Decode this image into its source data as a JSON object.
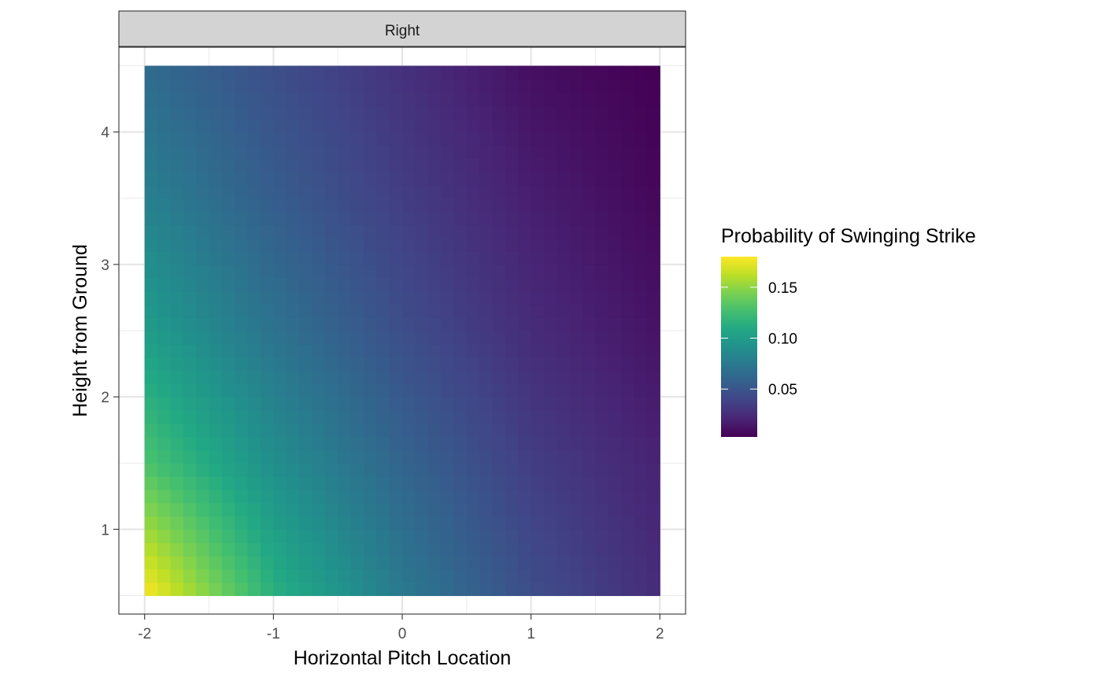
{
  "chart_data": {
    "type": "heatmap",
    "facet_label": "Right",
    "xlabel": "Horizontal Pitch Location",
    "ylabel": "Height from Ground",
    "xlim": [
      -2.2,
      2.2
    ],
    "ylim": [
      0.36,
      4.64
    ],
    "x_ticks": [
      -2,
      -1,
      0,
      1,
      2
    ],
    "x_tick_labels": [
      "-2",
      "-1",
      "0",
      "1",
      "2"
    ],
    "y_ticks": [
      1,
      2,
      3,
      4
    ],
    "y_tick_labels": [
      "1",
      "2",
      "3",
      "4"
    ],
    "grid": true,
    "x_range": [
      -2,
      2
    ],
    "y_range": [
      0.5,
      4.5
    ],
    "grid_x": [
      -2,
      -1,
      0,
      1,
      2
    ],
    "grid_y": [
      0.5,
      1.5,
      2.5,
      3.5,
      4.5
    ],
    "z": [
      [
        0.18,
        0.115,
        0.075,
        0.045,
        0.025
      ],
      [
        0.13,
        0.09,
        0.06,
        0.035,
        0.02
      ],
      [
        0.1,
        0.07,
        0.045,
        0.025,
        0.012
      ],
      [
        0.08,
        0.055,
        0.035,
        0.018,
        0.006
      ],
      [
        0.065,
        0.045,
        0.028,
        0.01,
        0.003
      ]
    ],
    "legend": {
      "title": "Probability of Swinging Strike",
      "ticks": [
        0.05,
        0.1,
        0.15
      ],
      "tick_labels": [
        "0.05",
        "0.10",
        "0.15"
      ],
      "range": [
        0.003,
        0.18
      ],
      "placement": "right",
      "colormap": "viridis"
    }
  }
}
